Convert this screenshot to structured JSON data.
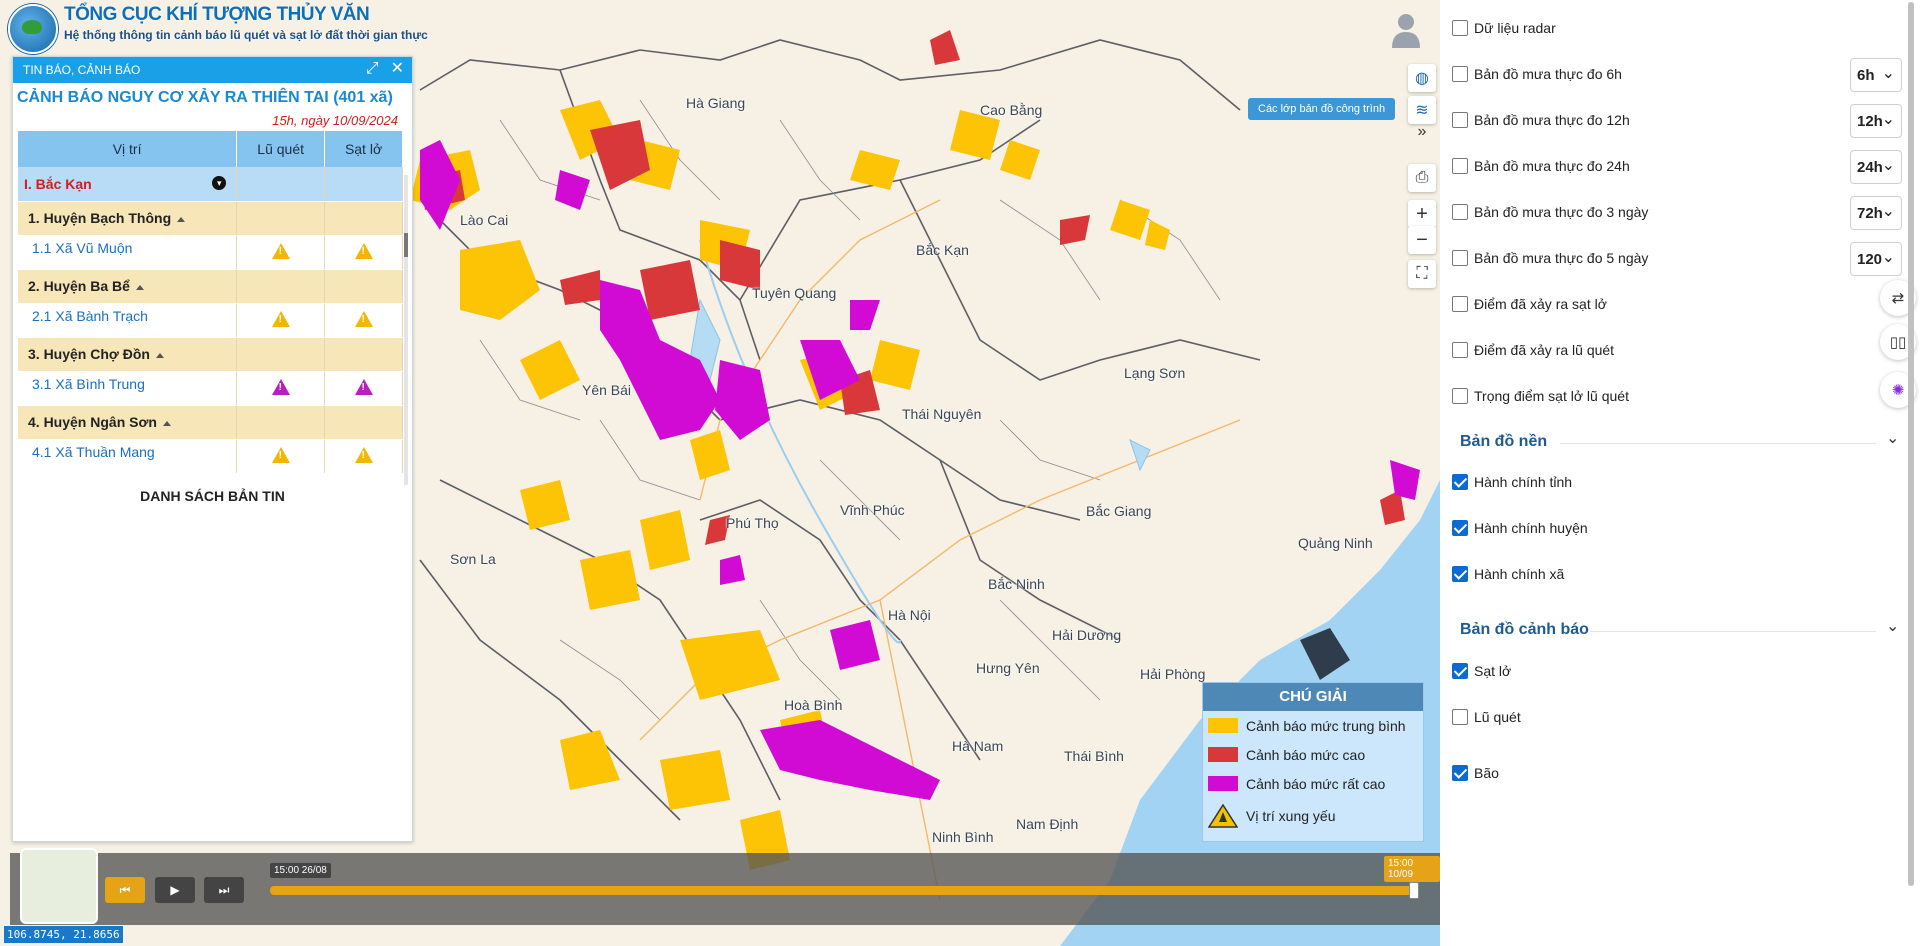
{
  "brand": {
    "title": "TỔNG CỤC KHÍ TƯỢNG THỦY VĂN",
    "subtitle": "Hệ thống thông tin cảnh báo lũ quét và sạt lở đất thời gian thực"
  },
  "warning_panel": {
    "header": "TIN BÁO, CẢNH BÁO",
    "title": "CẢNH BÁO NGUY CƠ XẢY RA THIÊN TAI (401 xã)",
    "date": "15h, ngày 10/09/2024",
    "columns": [
      "Vị trí",
      "Lũ quét",
      "Sạt lở"
    ],
    "province": "I. Bắc Kạn",
    "rows": [
      {
        "district": "1. Huyện Bạch Thông",
        "commune": "1.1  Xã Vũ Muộn",
        "flood": "medium",
        "landslide": "medium"
      },
      {
        "district": "2. Huyện Ba Bể",
        "commune": "2.1  Xã Bành Trạch",
        "flood": "medium",
        "landslide": "medium"
      },
      {
        "district": "3. Huyện Chợ Đồn",
        "commune": "3.1  Xã Bình Trung",
        "flood": "very-high",
        "landslide": "very-high"
      },
      {
        "district": "4. Huyện Ngân Sơn",
        "commune": "4.1  Xã Thuần Mang",
        "flood": "medium",
        "landslide": "medium"
      }
    ],
    "list_link": "DANH SÁCH BẢN TIN"
  },
  "map_labels": [
    "Hà Giang",
    "Cao Bằng",
    "Lào Cai",
    "Bắc Kạn",
    "Tuyên Quang",
    "Lạng Sơn",
    "Yên Bái",
    "Thái Nguyên",
    "Vĩnh Phúc",
    "Phú Thọ",
    "Bắc Giang",
    "Quảng Ninh",
    "Sơn La",
    "Bắc Ninh",
    "Hà Nội",
    "Hải Dương",
    "Hưng Yên",
    "Hải Phòng",
    "Hoà Bình",
    "Hà Nam",
    "Thái Bình",
    "Nam Định",
    "Ninh Bình"
  ],
  "layers_tooltip": "Các lớp bản đồ công trình",
  "legend": {
    "title": "CHÚ GIẢI",
    "items": [
      {
        "label": "Cảnh báo mức trung bình",
        "color": "#fdc305"
      },
      {
        "label": "Cảnh báo mức cao",
        "color": "#d9383a"
      },
      {
        "label": "Cảnh báo mức rất cao",
        "color": "#d10ad4"
      },
      {
        "label": "Vị trí xung yếu",
        "color": "#f2c400"
      }
    ]
  },
  "timeline": {
    "start": "15:00 26/08",
    "end": "15:00 10/09"
  },
  "coords": "106.8745, 21.8656",
  "layers": {
    "items": [
      {
        "label": "Dữ liệu radar",
        "checked": false
      },
      {
        "label": "Bản đồ mưa thực đo 6h",
        "checked": false,
        "select": "6h"
      },
      {
        "label": "Bản đồ mưa thực đo 12h",
        "checked": false,
        "select": "12h"
      },
      {
        "label": "Bản đồ mưa thực đo 24h",
        "checked": false,
        "select": "24h"
      },
      {
        "label": "Bản đồ mưa thực đo 3 ngày",
        "checked": false,
        "select": "72h"
      },
      {
        "label": "Bản đồ mưa thực đo 5 ngày",
        "checked": false,
        "select": "120"
      },
      {
        "label": "Điểm đã xảy ra sạt lở",
        "checked": false
      },
      {
        "label": "Điểm đã xảy ra lũ quét",
        "checked": false
      },
      {
        "label": "Trọng điểm sạt lở lũ quét",
        "checked": false
      }
    ],
    "base_title": "Bản đồ nền",
    "base_items": [
      {
        "label": "Hành chính tỉnh",
        "checked": true
      },
      {
        "label": "Hành chính huyện",
        "checked": true
      },
      {
        "label": "Hành chính xã",
        "checked": true
      }
    ],
    "warn_title": "Bản đồ cảnh báo",
    "warn_items": [
      {
        "label": "Sạt lở",
        "checked": true
      },
      {
        "label": "Lũ quét",
        "checked": false
      },
      {
        "label": "Bão",
        "checked": true
      }
    ]
  }
}
